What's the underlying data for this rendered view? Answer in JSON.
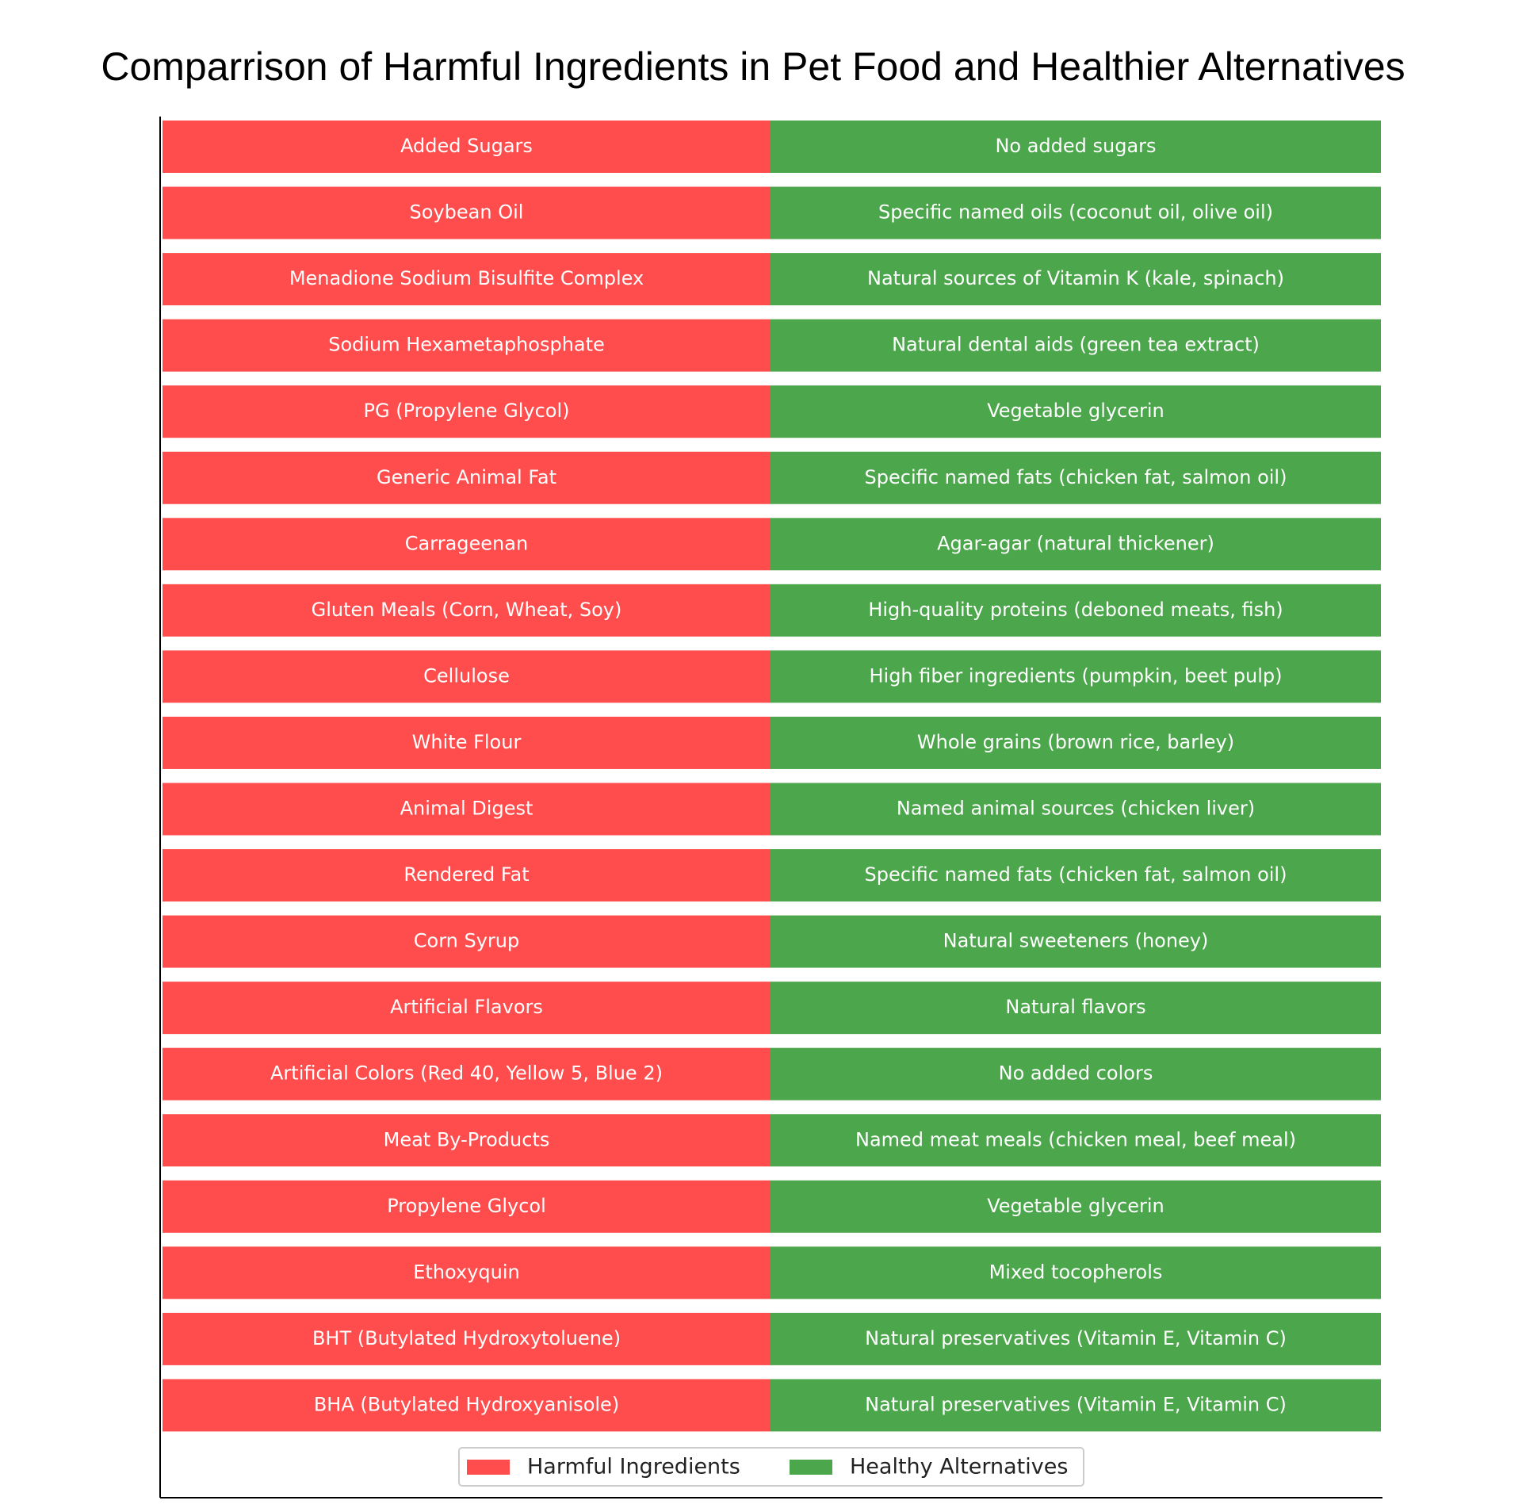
{
  "chart_data": {
    "type": "comparison",
    "title": "Comparrison of Harmful Ingredients in Pet Food and Healthier Alternatives",
    "series": [
      {
        "name": "Harmful Ingredients",
        "color": "#ff4c4c",
        "values": [
          "Added Sugars",
          "Soybean Oil",
          "Menadione Sodium Bisulfite Complex",
          "Sodium Hexametaphosphate",
          "PG (Propylene Glycol)",
          "Generic Animal Fat",
          "Carrageenan",
          "Gluten Meals (Corn, Wheat, Soy)",
          "Cellulose",
          "White Flour",
          "Animal Digest",
          "Rendered Fat",
          "Corn Syrup",
          "Artificial Flavors",
          "Artificial Colors (Red 40, Yellow 5, Blue 2)",
          "Meat By-Products",
          "Propylene Glycol",
          "Ethoxyquin",
          "BHT (Butylated Hydroxytoluene)",
          "BHA (Butylated Hydroxyanisole)"
        ]
      },
      {
        "name": "Healthy Alternatives",
        "color": "#4ca64c",
        "values": [
          "No added sugars",
          "Specific named oils (coconut oil, olive oil)",
          "Natural sources of Vitamin K (kale, spinach)",
          "Natural dental aids (green tea extract)",
          "Vegetable glycerin",
          "Specific named fats (chicken fat, salmon oil)",
          "Agar-agar (natural thickener)",
          "High-quality proteins (deboned meats, fish)",
          "High fiber ingredients (pumpkin, beet pulp)",
          "Whole grains (brown rice, barley)",
          "Named animal sources (chicken liver)",
          "Specific named fats (chicken fat, salmon oil)",
          "Natural sweeteners (honey)",
          "Natural flavors",
          "No added colors",
          "Named meat meals (chicken meal, beef meal)",
          "Vegetable glycerin",
          "Mixed tocopherols",
          "Natural preservatives (Vitamin E, Vitamin C)",
          "Natural preservatives (Vitamin E, Vitamin C)"
        ]
      }
    ]
  }
}
